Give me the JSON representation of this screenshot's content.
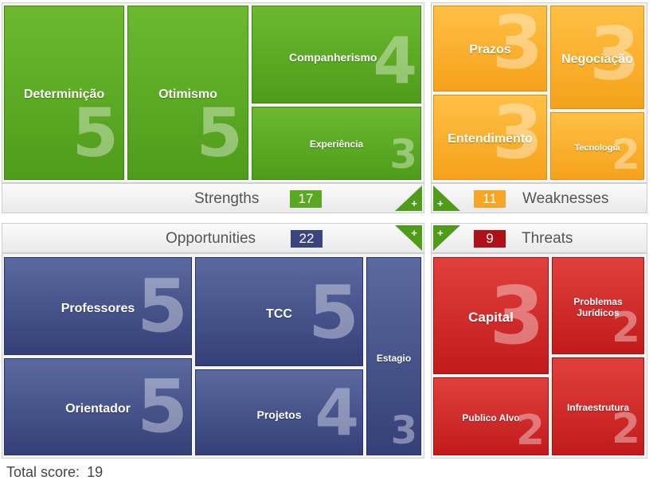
{
  "colors": {
    "strength": "#5aa722",
    "weakness": "#f7a623",
    "opportunity": "#3a4580",
    "threat": "#b01116"
  },
  "strengths": {
    "label": "Strengths",
    "count": "17",
    "add_icon": "plus-icon",
    "items": [
      {
        "name": "Determinição",
        "score": "5"
      },
      {
        "name": "Otimismo",
        "score": "5"
      },
      {
        "name": "Companherismo",
        "score": "4"
      },
      {
        "name": "Experiência",
        "score": "3"
      }
    ]
  },
  "weaknesses": {
    "label": "Weaknesses",
    "count": "11",
    "add_icon": "plus-icon",
    "items": [
      {
        "name": "Prazos",
        "score": "3"
      },
      {
        "name": "Negociação",
        "score": "3"
      },
      {
        "name": "Entendimento",
        "score": "3"
      },
      {
        "name": "Tecnologia",
        "score": "2"
      }
    ]
  },
  "opportunities": {
    "label": "Opportunities",
    "count": "22",
    "add_icon": "plus-icon",
    "items": [
      {
        "name": "Professores",
        "score": "5"
      },
      {
        "name": "TCC",
        "score": "5"
      },
      {
        "name": "Estagio",
        "score": "3"
      },
      {
        "name": "Orientador",
        "score": "5"
      },
      {
        "name": "Projetos",
        "score": "4"
      }
    ]
  },
  "threats": {
    "label": "Threats",
    "count": "9",
    "add_icon": "plus-icon",
    "items": [
      {
        "name": "Capital",
        "score": "3"
      },
      {
        "name": "Problemas\nJurídicos",
        "score": "2"
      },
      {
        "name": "Publico Alvo",
        "score": "2"
      },
      {
        "name": "Infraestrutura",
        "score": "2"
      }
    ]
  },
  "footer": {
    "total_label": "Total score:",
    "total_value": "19"
  }
}
